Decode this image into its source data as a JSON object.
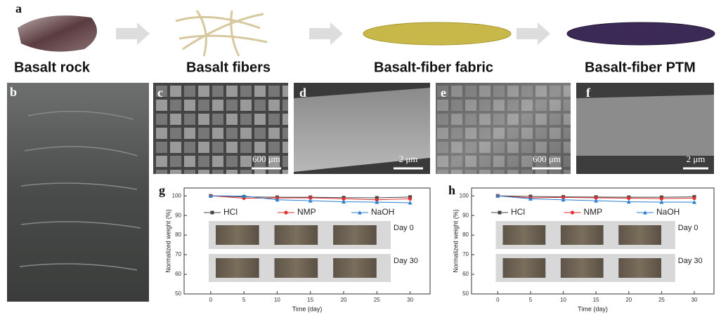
{
  "labels": [
    "a",
    "b",
    "c",
    "d",
    "e",
    "f"
  ],
  "captions": [
    "Basalt rock",
    "Basalt fibers",
    "Basalt-fiber fabric",
    "Basalt-fiber PTM"
  ],
  "scale_bars": [
    "600 μm",
    "2 μm",
    "600 μm",
    "2 μm"
  ],
  "chart_data": [
    {
      "type": "line",
      "label": "g",
      "x_label": "Time (day)",
      "y_label": "Normalized weight (%)",
      "x": [
        0,
        5,
        10,
        15,
        20,
        25,
        30
      ],
      "xlim": [
        -4,
        33
      ],
      "xticks": [
        0,
        5,
        10,
        15,
        20,
        25,
        30
      ],
      "ylim": [
        50,
        104
      ],
      "yticks": [
        50,
        60,
        70,
        80,
        90,
        100
      ],
      "grid": false,
      "legend": "top",
      "annotations": [
        "Day 0",
        "Day 30"
      ],
      "series": [
        {
          "name": "HCl",
          "color": "#444444",
          "marker": "square",
          "values": [
            100,
            99.5,
            99.3,
            99.3,
            99.1,
            99.0,
            99.4
          ]
        },
        {
          "name": "NMP",
          "color": "#e03030",
          "marker": "circle",
          "values": [
            100,
            98.8,
            98.9,
            99.0,
            98.5,
            98.0,
            98.5
          ]
        },
        {
          "name": "NaOH",
          "color": "#2a7fd0",
          "marker": "triangle",
          "values": [
            100,
            99.9,
            98.0,
            97.5,
            97.0,
            96.8,
            96.5
          ]
        }
      ]
    },
    {
      "type": "line",
      "label": "h",
      "x_label": "Time (day)",
      "y_label": "Normalized weight (%)",
      "x": [
        0,
        5,
        10,
        15,
        20,
        25,
        30
      ],
      "xlim": [
        -4,
        33
      ],
      "xticks": [
        0,
        5,
        10,
        15,
        20,
        25,
        30
      ],
      "ylim": [
        50,
        104
      ],
      "yticks": [
        50,
        60,
        70,
        80,
        90,
        100
      ],
      "grid": false,
      "legend": "top",
      "annotations": [
        "Day 0",
        "Day 30"
      ],
      "series": [
        {
          "name": "HCl",
          "color": "#444444",
          "marker": "square",
          "values": [
            100,
            99.7,
            99.5,
            99.4,
            99.3,
            99.3,
            99.5
          ]
        },
        {
          "name": "NMP",
          "color": "#e03030",
          "marker": "circle",
          "values": [
            100,
            99.0,
            99.2,
            99.0,
            98.8,
            98.6,
            98.8
          ]
        },
        {
          "name": "NaOH",
          "color": "#2a7fd0",
          "marker": "triangle",
          "values": [
            100,
            98.5,
            98.0,
            97.5,
            97.0,
            96.8,
            96.8
          ]
        }
      ]
    }
  ]
}
